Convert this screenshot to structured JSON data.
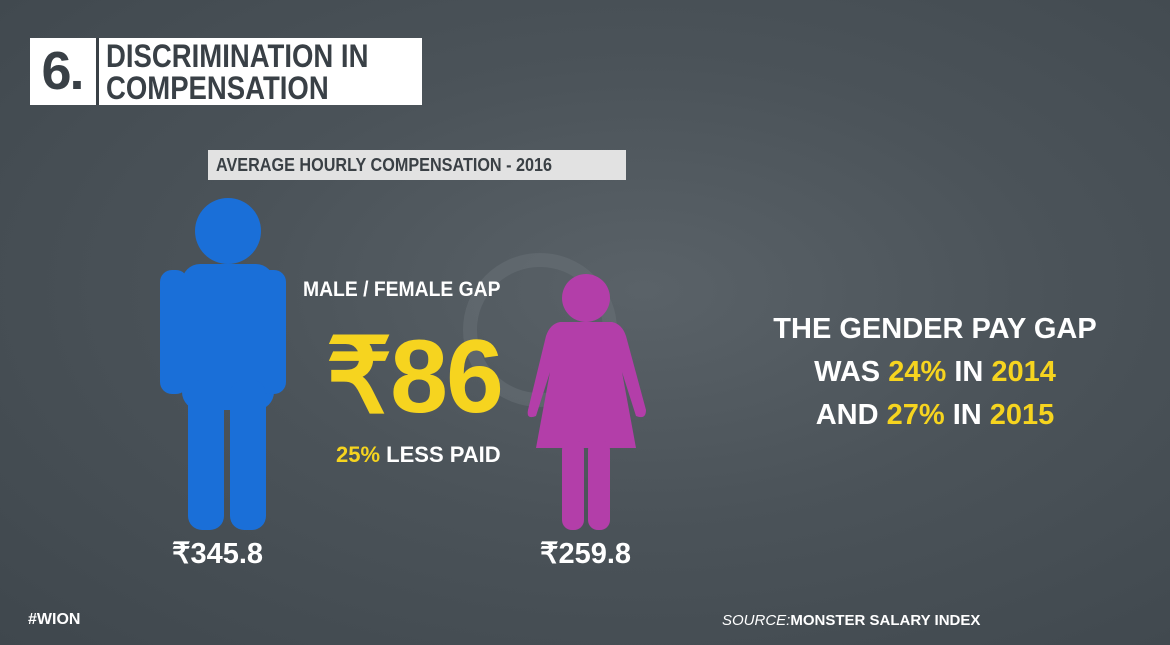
{
  "header": {
    "number": "6.",
    "title_lines": [
      "DISCRIMINATION IN",
      "COMPENSATION"
    ]
  },
  "subtitle": "AVERAGE HOURLY COMPENSATION - 2016",
  "gap": {
    "heading": "MALE / FEMALE GAP",
    "amount": "₹86",
    "percent": "25%",
    "percent_text": "LESS PAID"
  },
  "male": {
    "label": "₹345.8"
  },
  "female": {
    "label": "₹259.8"
  },
  "statement": [
    [
      "THE GENDER PAY GAP"
    ],
    [
      "WAS",
      "24%",
      "IN",
      "2014"
    ],
    [
      "AND",
      "27%",
      "IN",
      "2015"
    ]
  ],
  "footer": {
    "hashtag": "#WION",
    "source_label": "SOURCE:",
    "source": "MONSTER SALARY INDEX"
  }
}
